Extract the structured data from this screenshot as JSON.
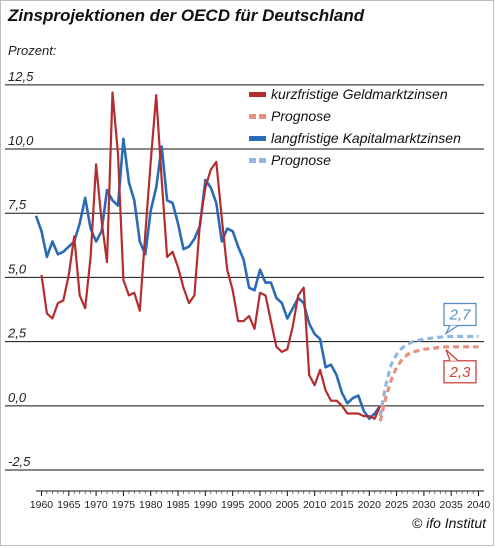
{
  "title": "Zinsprojektionen der OECD für Deutschland",
  "unit_label": "Prozent:",
  "credit": "© ifo Institut",
  "colors": {
    "short_rate": "#b32d2e",
    "short_forecast": "#e8907f",
    "long_rate": "#2a6bb5",
    "long_forecast": "#8db9e2",
    "callout_long": "#5a8fc4",
    "callout_short": "#c8453a"
  },
  "chart_data": {
    "type": "line",
    "title": "Zinsprojektionen der OECD für Deutschland",
    "ylabel": "Prozent:",
    "xlim": [
      1959,
      2041
    ],
    "ylim": [
      -3.2,
      13.0
    ],
    "grid": "horizontal",
    "legend_position": "top-right",
    "x_ticks": [
      1960,
      1965,
      1970,
      1975,
      1980,
      1985,
      1990,
      1995,
      2000,
      2005,
      2010,
      2015,
      2020,
      2025,
      2030,
      2035,
      2040
    ],
    "y_ticks": [
      -2.5,
      0.0,
      2.5,
      5.0,
      7.5,
      10.0,
      12.5
    ],
    "y_tick_labels": [
      "-2,5",
      "0,0",
      "2,5",
      "5,0",
      "7,5",
      "10,0",
      "12,5"
    ],
    "legend": [
      {
        "label": "kurzfristige Geldmarktzinsen",
        "series": "short",
        "style": "solid"
      },
      {
        "label": "Prognose",
        "series": "short_forecast",
        "style": "dashed"
      },
      {
        "label": "langfristige Kapitalmarktzinsen",
        "series": "long",
        "style": "solid"
      },
      {
        "label": "Prognose",
        "series": "long_forecast",
        "style": "dashed"
      }
    ],
    "callouts": [
      {
        "text": "2,7",
        "series": "long_forecast",
        "x": 2040,
        "y": 2.7
      },
      {
        "text": "2,3",
        "series": "short_forecast",
        "x": 2040,
        "y": 2.3
      }
    ],
    "series": [
      {
        "name": "kurzfristige Geldmarktzinsen",
        "key": "short",
        "x": [
          1960,
          1961,
          1962,
          1963,
          1964,
          1965,
          1966,
          1967,
          1968,
          1969,
          1970,
          1971,
          1972,
          1973,
          1974,
          1975,
          1976,
          1977,
          1978,
          1979,
          1980,
          1981,
          1982,
          1983,
          1984,
          1985,
          1986,
          1987,
          1988,
          1989,
          1990,
          1991,
          1992,
          1993,
          1994,
          1995,
          1996,
          1997,
          1998,
          1999,
          2000,
          2001,
          2002,
          2003,
          2004,
          2005,
          2006,
          2007,
          2008,
          2009,
          2010,
          2011,
          2012,
          2013,
          2014,
          2015,
          2016,
          2017,
          2018,
          2019,
          2020,
          2021,
          2022
        ],
        "values": [
          5.1,
          3.6,
          3.4,
          4.0,
          4.1,
          5.1,
          6.6,
          4.3,
          3.8,
          5.8,
          9.4,
          7.2,
          5.6,
          12.2,
          9.8,
          4.9,
          4.3,
          4.4,
          3.7,
          6.7,
          9.5,
          12.1,
          8.8,
          5.8,
          6.0,
          5.4,
          4.6,
          4.0,
          4.3,
          7.1,
          8.5,
          9.2,
          9.5,
          7.3,
          5.3,
          4.5,
          3.3,
          3.3,
          3.5,
          3.0,
          4.4,
          4.3,
          3.3,
          2.3,
          2.1,
          2.2,
          3.1,
          4.3,
          4.6,
          1.2,
          0.8,
          1.4,
          0.6,
          0.2,
          0.2,
          0.0,
          -0.3,
          -0.3,
          -0.3,
          -0.4,
          -0.4,
          -0.5,
          0.0
        ]
      },
      {
        "name": "Prognose",
        "key": "short_forecast",
        "x": [
          2022,
          2023,
          2024,
          2025,
          2026,
          2027,
          2028,
          2030,
          2032,
          2034,
          2036,
          2038,
          2040
        ],
        "values": [
          -0.6,
          0.3,
          1.0,
          1.5,
          1.8,
          2.0,
          2.1,
          2.2,
          2.25,
          2.3,
          2.3,
          2.3,
          2.3
        ]
      },
      {
        "name": "langfristige Kapitalmarktzinsen",
        "key": "long",
        "x": [
          1959,
          1960,
          1961,
          1962,
          1963,
          1964,
          1965,
          1966,
          1967,
          1968,
          1969,
          1970,
          1971,
          1972,
          1973,
          1974,
          1975,
          1976,
          1977,
          1978,
          1979,
          1980,
          1981,
          1982,
          1983,
          1984,
          1985,
          1986,
          1987,
          1988,
          1989,
          1990,
          1991,
          1992,
          1993,
          1994,
          1995,
          1996,
          1997,
          1998,
          1999,
          2000,
          2001,
          2002,
          2003,
          2004,
          2005,
          2006,
          2007,
          2008,
          2009,
          2010,
          2011,
          2012,
          2013,
          2014,
          2015,
          2016,
          2017,
          2018,
          2019,
          2020,
          2021,
          2022
        ],
        "values": [
          7.4,
          6.8,
          5.8,
          6.4,
          5.9,
          6.0,
          6.2,
          6.4,
          7.1,
          8.1,
          6.9,
          6.4,
          6.8,
          8.4,
          8.0,
          7.8,
          10.4,
          8.7,
          8.0,
          6.4,
          5.9,
          7.6,
          8.5,
          10.1,
          8.0,
          7.9,
          7.1,
          6.1,
          6.2,
          6.5,
          7.0,
          8.8,
          8.5,
          7.9,
          6.4,
          6.9,
          6.8,
          6.2,
          5.7,
          4.6,
          4.5,
          5.3,
          4.8,
          4.8,
          4.2,
          4.0,
          3.4,
          3.8,
          4.2,
          4.0,
          3.2,
          2.8,
          2.6,
          1.5,
          1.6,
          1.2,
          0.5,
          0.1,
          0.3,
          0.4,
          -0.2,
          -0.5,
          -0.3,
          0.0
        ]
      },
      {
        "name": "Prognose",
        "key": "long_forecast",
        "x": [
          2022,
          2023,
          2024,
          2025,
          2026,
          2027,
          2028,
          2030,
          2032,
          2034,
          2036,
          2038,
          2040
        ],
        "values": [
          -0.4,
          0.8,
          1.6,
          2.0,
          2.25,
          2.4,
          2.5,
          2.6,
          2.65,
          2.7,
          2.7,
          2.7,
          2.7
        ]
      }
    ]
  }
}
